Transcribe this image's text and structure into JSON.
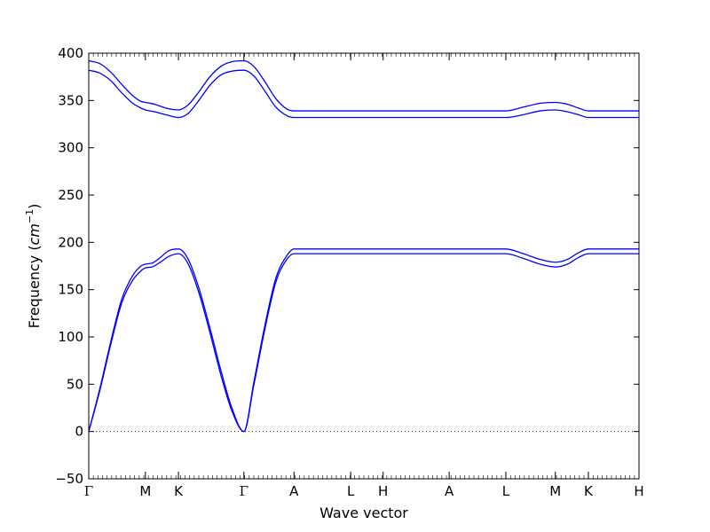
{
  "chart_data": {
    "type": "line",
    "xlabel": "Wave vector",
    "ylabel": "Frequency (cm⁻¹)",
    "ylabel_text": "Frequency (",
    "ylabel_unit": "cm",
    "ylabel_exp": "−1",
    "ylabel_close": ")",
    "ylim": [
      -50,
      400
    ],
    "yticks": [
      "−50",
      "0",
      "50",
      "100",
      "150",
      "200",
      "250",
      "300",
      "350",
      "400"
    ],
    "ytick_values": [
      -50,
      0,
      50,
      100,
      150,
      200,
      250,
      300,
      350,
      400
    ],
    "xlim": [
      0,
      1
    ],
    "xticks": [
      {
        "label": "Γ",
        "x": 0.0
      },
      {
        "label": "M",
        "x": 0.103
      },
      {
        "label": "K",
        "x": 0.163
      },
      {
        "label": "Γ",
        "x": 0.282
      },
      {
        "label": "A",
        "x": 0.373
      },
      {
        "label": "L",
        "x": 0.476
      },
      {
        "label": "H",
        "x": 0.535
      },
      {
        "label": "A",
        "x": 0.655
      },
      {
        "label": "L",
        "x": 0.758
      },
      {
        "label": "M",
        "x": 0.848
      },
      {
        "label": "K",
        "x": 0.908
      },
      {
        "label": "H",
        "x": 1.0
      }
    ],
    "zero_line": true,
    "line_color": "#0000ff",
    "series": [
      {
        "x": [
          0.0,
          0.02,
          0.04,
          0.06,
          0.08,
          0.095,
          0.103,
          0.115,
          0.13,
          0.145,
          0.163,
          0.18,
          0.2,
          0.22,
          0.24,
          0.26,
          0.282,
          0.3,
          0.32,
          0.34,
          0.36,
          0.373,
          0.476,
          0.535,
          0.655,
          0.758,
          0.79,
          0.82,
          0.848,
          0.87,
          0.89,
          0.908,
          1.0
        ],
        "y": [
          0,
          45,
          95,
          140,
          165,
          175,
          177,
          178,
          184,
          191,
          193,
          183,
          152,
          110,
          65,
          25,
          0,
          52,
          112,
          162,
          186,
          193,
          193,
          193,
          193,
          193,
          188,
          182,
          179,
          182,
          189,
          193,
          193
        ]
      },
      {
        "x": [
          0.0,
          0.02,
          0.04,
          0.06,
          0.08,
          0.095,
          0.103,
          0.115,
          0.13,
          0.145,
          0.163,
          0.18,
          0.2,
          0.22,
          0.24,
          0.26,
          0.282,
          0.3,
          0.32,
          0.34,
          0.36,
          0.373,
          0.476,
          0.535,
          0.655,
          0.758,
          0.79,
          0.82,
          0.848,
          0.87,
          0.89,
          0.908,
          1.0
        ],
        "y": [
          0,
          43,
          92,
          136,
          160,
          170,
          173,
          174,
          179,
          185,
          188,
          178,
          147,
          105,
          60,
          22,
          0,
          49,
          108,
          158,
          182,
          188,
          188,
          188,
          188,
          188,
          183,
          177,
          174,
          177,
          184,
          188,
          188
        ]
      },
      {
        "x": [
          0.0,
          0.02,
          0.04,
          0.06,
          0.08,
          0.095,
          0.103,
          0.12,
          0.14,
          0.163,
          0.18,
          0.2,
          0.22,
          0.24,
          0.26,
          0.282,
          0.3,
          0.32,
          0.34,
          0.36,
          0.373,
          0.476,
          0.535,
          0.655,
          0.758,
          0.79,
          0.82,
          0.848,
          0.87,
          0.89,
          0.908,
          1.0
        ],
        "y": [
          392,
          389,
          380,
          367,
          355,
          349,
          348,
          346,
          342,
          340,
          345,
          359,
          375,
          386,
          391,
          392,
          386,
          370,
          352,
          341,
          339,
          339,
          339,
          339,
          339,
          343,
          347,
          348,
          346,
          342,
          339,
          339
        ]
      },
      {
        "x": [
          0.0,
          0.02,
          0.04,
          0.06,
          0.08,
          0.095,
          0.103,
          0.12,
          0.14,
          0.163,
          0.18,
          0.2,
          0.22,
          0.24,
          0.26,
          0.282,
          0.3,
          0.32,
          0.34,
          0.36,
          0.373,
          0.476,
          0.535,
          0.655,
          0.758,
          0.79,
          0.82,
          0.848,
          0.87,
          0.89,
          0.908,
          1.0
        ],
        "y": [
          382,
          379,
          371,
          358,
          347,
          342,
          340,
          338,
          335,
          332,
          336,
          350,
          366,
          377,
          381,
          382,
          376,
          360,
          343,
          334,
          332,
          332,
          332,
          332,
          332,
          335,
          339,
          340,
          338,
          335,
          332,
          332
        ]
      }
    ]
  }
}
